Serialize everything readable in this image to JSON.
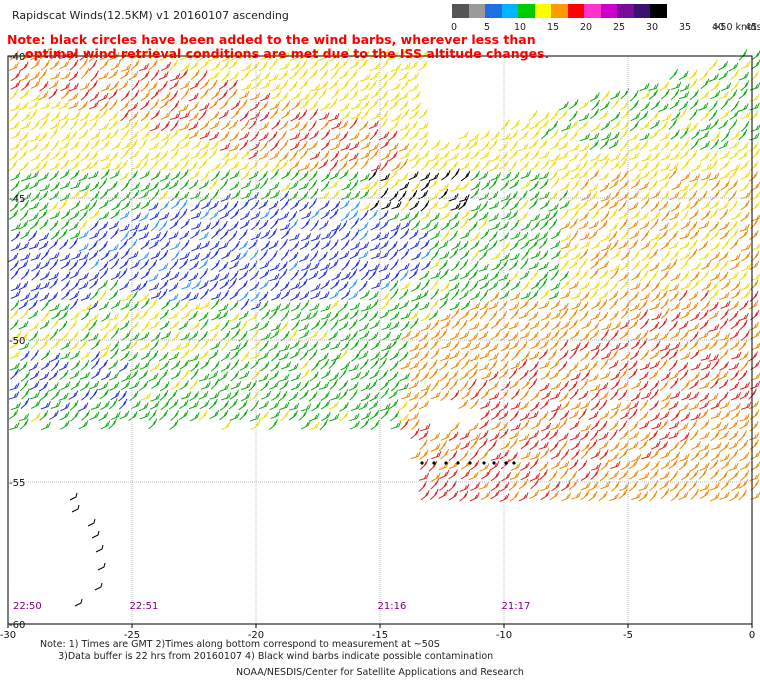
{
  "title": "Rapidscat Winds(12.5KM)  v1  20160107  ascending",
  "note": {
    "line1": "Note: black circles have been added to the wind barbs, wherever less than",
    "line2": "optimal wind retrieval conditions are met due to the ISS altitude changes."
  },
  "legend": {
    "unit_label": ">50 knots",
    "labels": [
      "0",
      "5",
      "10",
      "15",
      "20",
      "25",
      "30",
      "35",
      "40",
      "45"
    ],
    "colors": [
      "#555555",
      "#9a9a9a",
      "#1e6ee6",
      "#00b4ff",
      "#00cc00",
      "#ffff00",
      "#ff9900",
      "#ff0000",
      "#ff33cc",
      "#cc00cc",
      "#7a0a9a",
      "#3a1070",
      "#000000"
    ]
  },
  "axes": {
    "lon_labels": [
      "-30",
      "-25",
      "-20",
      "-15",
      "-10",
      "-5",
      "0"
    ],
    "lat_labels": [
      "-40",
      "-45",
      "-50",
      "-55",
      "-60"
    ]
  },
  "times": [
    "22:50",
    "22:51",
    "21:16",
    "21:17"
  ],
  "wind_speed_colors": {
    "blue": "#2233dd",
    "light_blue": "#3399ff",
    "green": "#11aa11",
    "yellow": "#eedd00",
    "orange": "#ee8800",
    "red": "#dd2222",
    "crimson": "#cc1155",
    "magenta": "#cc22cc",
    "black": "#000000"
  },
  "footnote": "Note: 1) Times are GMT 2)Times along bottom correspond to measurement at ~50S\n      3)Data buffer is 22 hrs from 20160107 4) Black wind barbs indicate possible contamination",
  "credit": "NOAA/NESDIS/Center for Satellite Applications and Research"
}
